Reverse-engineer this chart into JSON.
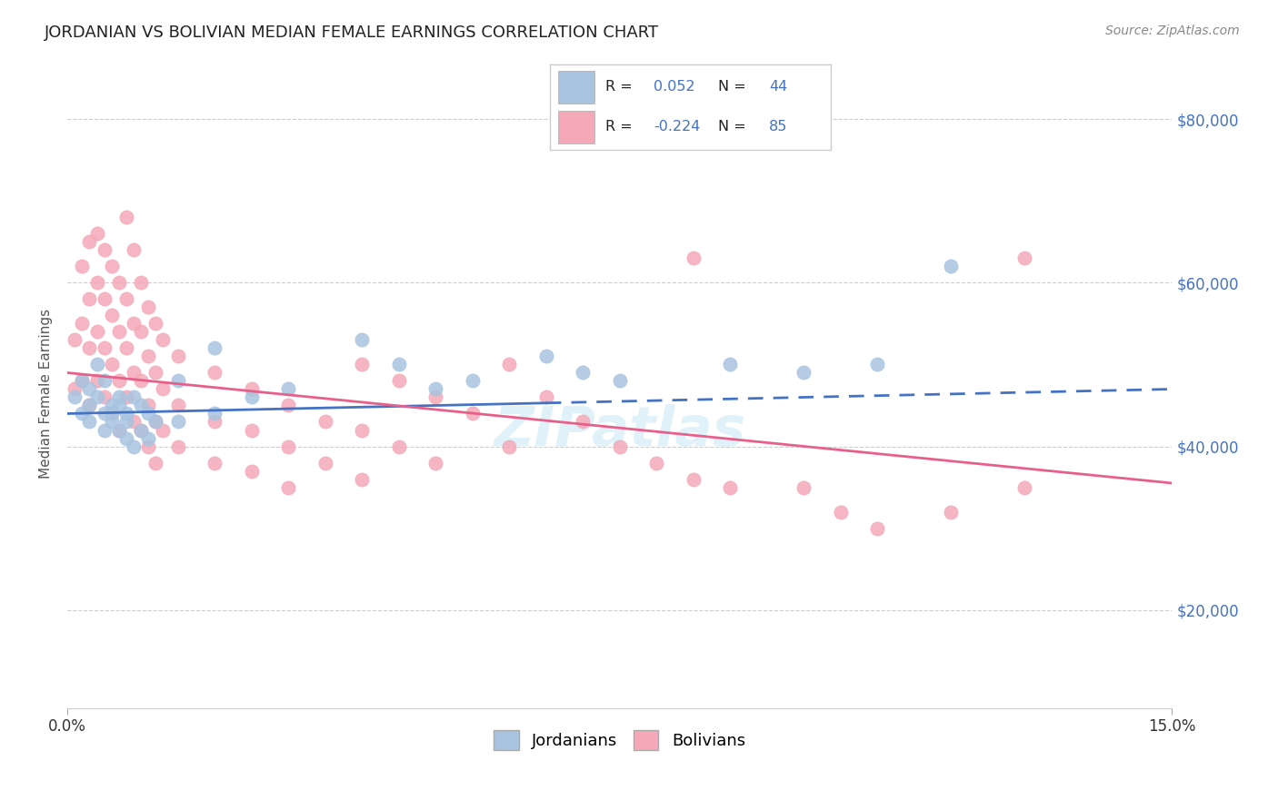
{
  "title": "JORDANIAN VS BOLIVIAN MEDIAN FEMALE EARNINGS CORRELATION CHART",
  "source": "Source: ZipAtlas.com",
  "ylabel": "Median Female Earnings",
  "xlim": [
    0.0,
    0.15
  ],
  "ylim": [
    8000,
    85000
  ],
  "yticks": [
    20000,
    40000,
    60000,
    80000
  ],
  "ytick_labels": [
    "$20,000",
    "$40,000",
    "$60,000",
    "$80,000"
  ],
  "xticks": [
    0.0,
    0.15
  ],
  "xtick_labels": [
    "0.0%",
    "15.0%"
  ],
  "background_color": "#ffffff",
  "grid_color": "#cccccc",
  "title_color": "#222222",
  "title_fontsize": 13,
  "source_color": "#888888",
  "axis_label_color": "#555555",
  "tick_color_right": "#4472c4",
  "legend_r_color": "#4472c4",
  "jordanian_color": "#a8c4e0",
  "bolivian_color": "#f4a8b8",
  "jordanian_line_color": "#4472c4",
  "bolivian_line_color": "#e8608a",
  "R_jordanian": 0.052,
  "N_jordanian": 44,
  "R_bolivian": -0.224,
  "N_bolivian": 85,
  "jordanian_scatter": [
    [
      0.001,
      46000
    ],
    [
      0.002,
      48000
    ],
    [
      0.002,
      44000
    ],
    [
      0.003,
      47000
    ],
    [
      0.003,
      45000
    ],
    [
      0.003,
      43000
    ],
    [
      0.004,
      50000
    ],
    [
      0.004,
      46000
    ],
    [
      0.005,
      44000
    ],
    [
      0.005,
      42000
    ],
    [
      0.005,
      48000
    ],
    [
      0.006,
      45000
    ],
    [
      0.006,
      44000
    ],
    [
      0.006,
      43000
    ],
    [
      0.007,
      46000
    ],
    [
      0.007,
      42000
    ],
    [
      0.007,
      45000
    ],
    [
      0.008,
      41000
    ],
    [
      0.008,
      44000
    ],
    [
      0.008,
      43000
    ],
    [
      0.009,
      46000
    ],
    [
      0.009,
      40000
    ],
    [
      0.01,
      45000
    ],
    [
      0.01,
      42000
    ],
    [
      0.011,
      44000
    ],
    [
      0.011,
      41000
    ],
    [
      0.012,
      43000
    ],
    [
      0.015,
      48000
    ],
    [
      0.015,
      43000
    ],
    [
      0.02,
      52000
    ],
    [
      0.02,
      44000
    ],
    [
      0.025,
      46000
    ],
    [
      0.03,
      47000
    ],
    [
      0.04,
      53000
    ],
    [
      0.045,
      50000
    ],
    [
      0.05,
      47000
    ],
    [
      0.055,
      48000
    ],
    [
      0.065,
      51000
    ],
    [
      0.07,
      49000
    ],
    [
      0.075,
      48000
    ],
    [
      0.09,
      50000
    ],
    [
      0.1,
      49000
    ],
    [
      0.11,
      50000
    ],
    [
      0.12,
      62000
    ]
  ],
  "bolivian_scatter": [
    [
      0.001,
      47000
    ],
    [
      0.001,
      53000
    ],
    [
      0.002,
      62000
    ],
    [
      0.002,
      55000
    ],
    [
      0.002,
      48000
    ],
    [
      0.003,
      65000
    ],
    [
      0.003,
      58000
    ],
    [
      0.003,
      52000
    ],
    [
      0.003,
      45000
    ],
    [
      0.004,
      66000
    ],
    [
      0.004,
      60000
    ],
    [
      0.004,
      54000
    ],
    [
      0.004,
      48000
    ],
    [
      0.005,
      64000
    ],
    [
      0.005,
      58000
    ],
    [
      0.005,
      52000
    ],
    [
      0.005,
      46000
    ],
    [
      0.006,
      62000
    ],
    [
      0.006,
      56000
    ],
    [
      0.006,
      50000
    ],
    [
      0.006,
      44000
    ],
    [
      0.007,
      60000
    ],
    [
      0.007,
      54000
    ],
    [
      0.007,
      48000
    ],
    [
      0.007,
      42000
    ],
    [
      0.008,
      68000
    ],
    [
      0.008,
      58000
    ],
    [
      0.008,
      52000
    ],
    [
      0.008,
      46000
    ],
    [
      0.009,
      64000
    ],
    [
      0.009,
      55000
    ],
    [
      0.009,
      49000
    ],
    [
      0.009,
      43000
    ],
    [
      0.01,
      60000
    ],
    [
      0.01,
      54000
    ],
    [
      0.01,
      48000
    ],
    [
      0.01,
      42000
    ],
    [
      0.011,
      57000
    ],
    [
      0.011,
      51000
    ],
    [
      0.011,
      45000
    ],
    [
      0.011,
      40000
    ],
    [
      0.012,
      55000
    ],
    [
      0.012,
      49000
    ],
    [
      0.012,
      43000
    ],
    [
      0.012,
      38000
    ],
    [
      0.013,
      53000
    ],
    [
      0.013,
      47000
    ],
    [
      0.013,
      42000
    ],
    [
      0.015,
      51000
    ],
    [
      0.015,
      45000
    ],
    [
      0.015,
      40000
    ],
    [
      0.02,
      49000
    ],
    [
      0.02,
      43000
    ],
    [
      0.02,
      38000
    ],
    [
      0.025,
      47000
    ],
    [
      0.025,
      42000
    ],
    [
      0.025,
      37000
    ],
    [
      0.03,
      45000
    ],
    [
      0.03,
      40000
    ],
    [
      0.03,
      35000
    ],
    [
      0.035,
      43000
    ],
    [
      0.035,
      38000
    ],
    [
      0.04,
      50000
    ],
    [
      0.04,
      42000
    ],
    [
      0.04,
      36000
    ],
    [
      0.045,
      48000
    ],
    [
      0.045,
      40000
    ],
    [
      0.05,
      46000
    ],
    [
      0.05,
      38000
    ],
    [
      0.055,
      44000
    ],
    [
      0.06,
      50000
    ],
    [
      0.06,
      40000
    ],
    [
      0.065,
      46000
    ],
    [
      0.07,
      43000
    ],
    [
      0.075,
      40000
    ],
    [
      0.08,
      38000
    ],
    [
      0.085,
      36000
    ],
    [
      0.09,
      35000
    ],
    [
      0.1,
      35000
    ],
    [
      0.105,
      32000
    ],
    [
      0.11,
      30000
    ],
    [
      0.12,
      32000
    ],
    [
      0.13,
      63000
    ],
    [
      0.13,
      35000
    ],
    [
      0.085,
      63000
    ]
  ]
}
